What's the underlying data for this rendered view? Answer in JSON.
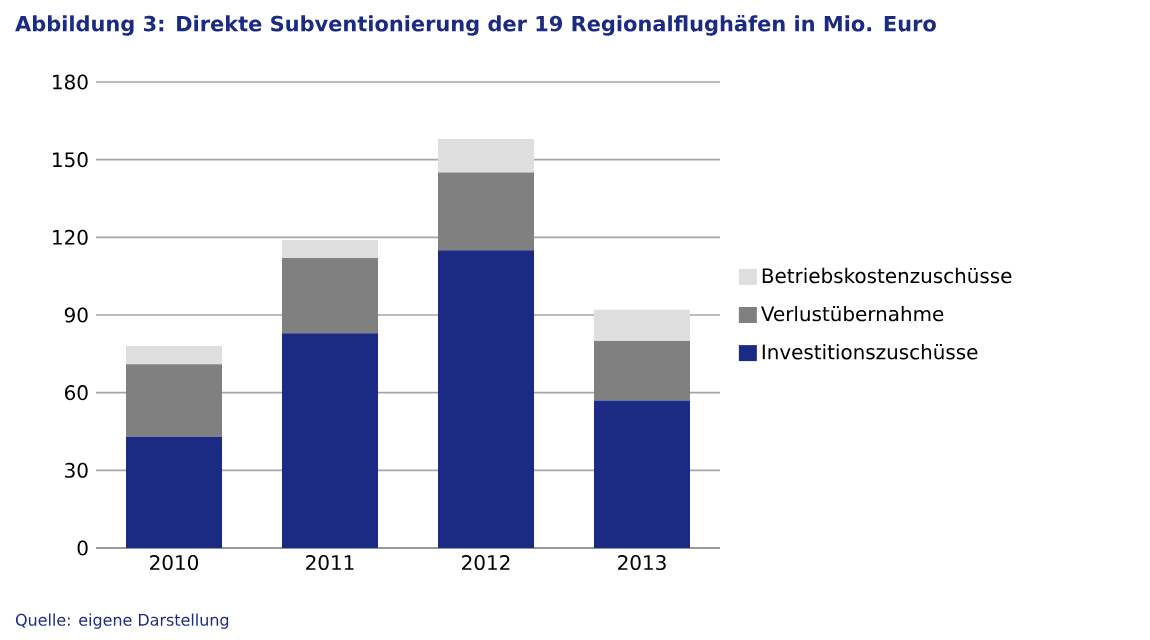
{
  "chart_data": {
    "type": "bar",
    "stacked": true,
    "title": "Abbildung 3: Direkte Subventionierung der 19 Regionalflughäfen in Mio. Euro",
    "categories": [
      "2010",
      "2011",
      "2012",
      "2013"
    ],
    "series": [
      {
        "name": "Investitionszuschüsse",
        "color": "#1b2a82",
        "values": [
          43,
          83,
          115,
          57
        ]
      },
      {
        "name": "Verlustübernahme",
        "color": "#808080",
        "values": [
          28,
          29,
          30,
          23
        ]
      },
      {
        "name": "Betriebskostenzuschüsse",
        "color": "#dedede",
        "values": [
          7,
          7,
          13,
          12
        ]
      }
    ],
    "ylim": [
      0,
      180
    ],
    "yticks": [
      0,
      30,
      60,
      90,
      120,
      150,
      180
    ],
    "grid": "y",
    "legend": "right",
    "annotations": [
      "Quelle: eigene Darstellung"
    ]
  }
}
